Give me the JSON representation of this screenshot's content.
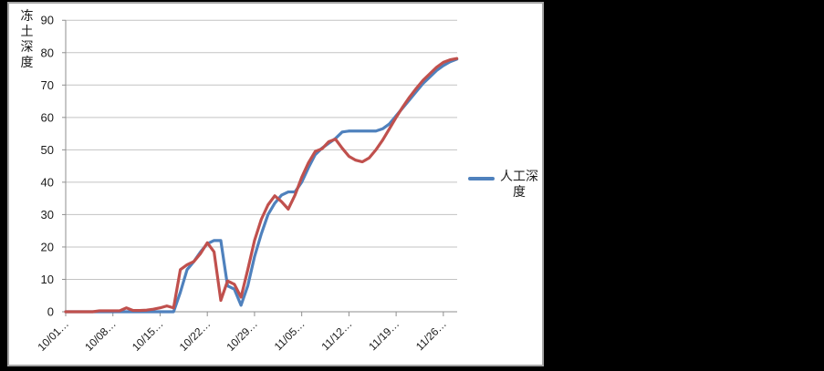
{
  "page": {
    "background_color": "#000000",
    "panel_background": "#ffffff",
    "panel_border_color": "#a6a6a6"
  },
  "chart": {
    "y_axis_title": "冻土深度",
    "legend": {
      "label": "人工深度"
    },
    "colors": {
      "gridline": "#c3c3c3",
      "axis": "#8f8f8f",
      "tick_text": "#1a1a1a",
      "blue_series": "#4F81BD",
      "red_series": "#C0504D"
    }
  },
  "chart_data": {
    "type": "line",
    "title": "",
    "ylabel": "冻土深度",
    "xlabel": "",
    "ylim": [
      0,
      90
    ],
    "y_ticks": [
      0,
      10,
      20,
      30,
      40,
      50,
      60,
      70,
      80,
      90
    ],
    "grid": true,
    "legend_position": "right",
    "x_is_daily_dates": "10/01 through 11/28",
    "n_points": 59,
    "x_tick_labels": [
      "10/01…",
      "10/08…",
      "10/15…",
      "10/22…",
      "10/29…",
      "11/05…",
      "11/12…",
      "11/19…",
      "11/26…"
    ],
    "x_tick_day_indices": [
      0,
      7,
      14,
      21,
      28,
      35,
      42,
      49,
      56
    ],
    "series": [
      {
        "name": "人工深度",
        "color": "#4F81BD",
        "in_legend": true,
        "values": [
          0,
          0,
          0,
          0,
          0,
          0,
          0,
          0,
          0,
          0,
          0,
          0,
          0,
          0,
          0,
          0,
          0,
          6,
          13,
          15.5,
          18.5,
          21,
          22,
          22,
          8,
          7,
          2,
          8,
          17,
          24,
          30,
          33.5,
          36,
          37,
          37,
          40,
          44.5,
          48.5,
          50.5,
          52,
          53.5,
          55.5,
          55.8,
          55.8,
          55.8,
          55.8,
          55.8,
          56.5,
          58,
          60.5,
          63,
          65.5,
          68,
          70.5,
          72.5,
          74.5,
          76,
          77.2,
          78
        ]
      },
      {
        "name": "",
        "color": "#C0504D",
        "in_legend": false,
        "values": [
          0,
          0,
          0,
          0,
          0,
          0.3,
          0.3,
          0.3,
          0.3,
          1.2,
          0.4,
          0.4,
          0.5,
          0.8,
          1.2,
          1.8,
          1.2,
          13,
          14.5,
          15.5,
          18,
          21.3,
          18.5,
          3.5,
          9.5,
          8.5,
          4.5,
          13,
          22,
          28.5,
          33,
          35.8,
          34,
          31.7,
          36,
          41.5,
          46,
          49.5,
          50.3,
          52.5,
          53.3,
          50.5,
          48,
          46.8,
          46.3,
          47.5,
          50,
          53,
          56.5,
          60,
          63.3,
          66.3,
          69,
          71.5,
          73.5,
          75.5,
          77,
          77.8,
          78.2
        ]
      }
    ]
  }
}
